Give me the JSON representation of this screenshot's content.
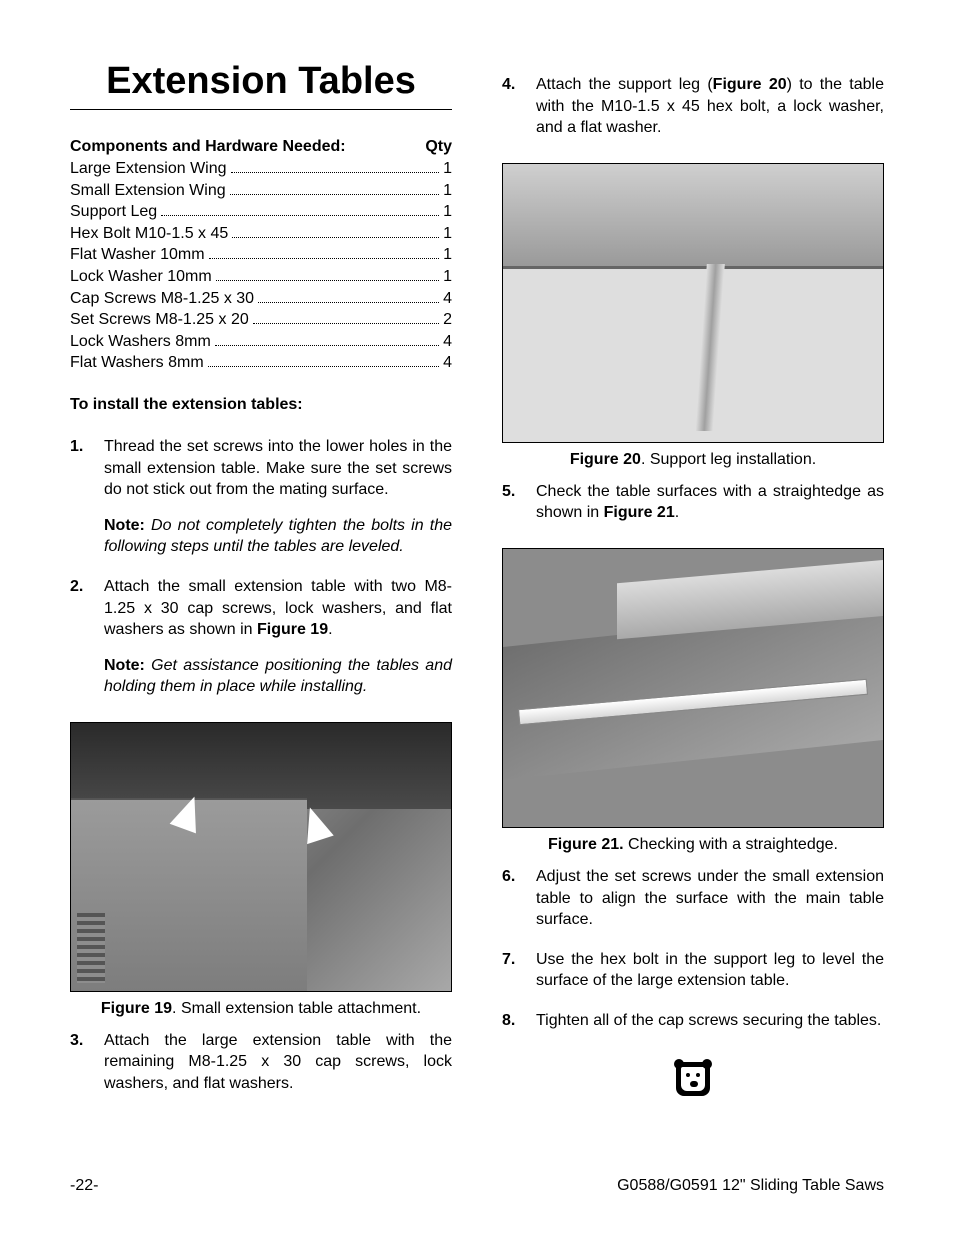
{
  "title": "Extension Tables",
  "components_header": {
    "label": "Components and Hardware Needed:",
    "qty": "Qty"
  },
  "components": [
    {
      "name": "Large Extension Wing",
      "qty": "1"
    },
    {
      "name": "Small Extension Wing",
      "qty": "1"
    },
    {
      "name": "Support Leg",
      "qty": "1"
    },
    {
      "name": "Hex Bolt M10-1.5 x 45",
      "qty": "1"
    },
    {
      "name": "Flat Washer 10mm",
      "qty": "1"
    },
    {
      "name": "Lock Washer 10mm",
      "qty": "1"
    },
    {
      "name": "Cap Screws M8-1.25 x 30",
      "qty": "4"
    },
    {
      "name": "Set Screws M8-1.25 x 20",
      "qty": "2"
    },
    {
      "name": "Lock Washers 8mm",
      "qty": "4"
    },
    {
      "name": "Flat Washers 8mm",
      "qty": "4"
    }
  ],
  "install_heading": "To install the extension tables:",
  "steps": {
    "s1": {
      "num": "1.",
      "text": "Thread the set screws into the lower holes in the small extension table. Make sure the set screws do not stick out from the mating surface.",
      "note_label": "Note:",
      "note": " Do not completely tighten the bolts in the following steps until the tables are leveled."
    },
    "s2": {
      "num": "2.",
      "text_a": "Attach the small extension table with two M8-1.25 x 30 cap screws, lock washers, and flat washers as shown in ",
      "fig_ref": "Figure 19",
      "text_b": ".",
      "note_label": "Note:",
      "note": " Get assistance positioning the tables and holding them in place while installing."
    },
    "s3": {
      "num": "3.",
      "text": "Attach the large extension table with the remaining M8-1.25 x 30 cap screws, lock washers, and flat washers."
    },
    "s4": {
      "num": "4.",
      "text_a": "Attach the support leg (",
      "fig_ref": "Figure 20",
      "text_b": ") to the table with the M10-1.5 x 45 hex bolt, a lock washer, and a flat washer."
    },
    "s5": {
      "num": "5.",
      "text_a": "Check the table surfaces with a straightedge as shown in ",
      "fig_ref": "Figure 21",
      "text_b": "."
    },
    "s6": {
      "num": "6.",
      "text": "Adjust the set screws under the small extension table to align the surface with the main table surface."
    },
    "s7": {
      "num": "7.",
      "text": "Use the hex bolt in the support leg to level the surface of the large extension table."
    },
    "s8": {
      "num": "8.",
      "text": "Tighten all of the cap screws securing the tables."
    }
  },
  "figures": {
    "f19": {
      "label": "Figure 19",
      "caption": ". Small extension table attachment."
    },
    "f20": {
      "label": "Figure 20",
      "caption": ". Support leg installation."
    },
    "f21": {
      "label": "Figure 21.",
      "caption": " Checking with a straightedge."
    }
  },
  "footer": {
    "page": "-22-",
    "doc": "G0588/G0591 12\" Sliding Table Saws"
  }
}
